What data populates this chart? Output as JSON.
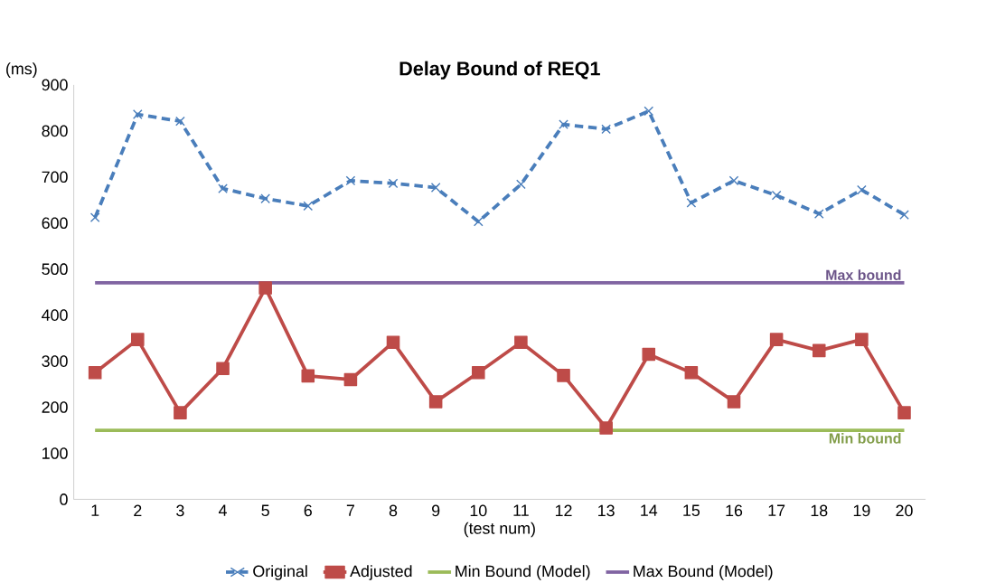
{
  "chart_data": {
    "type": "line",
    "title": "Delay Bound of REQ1",
    "xlabel": "(test num)",
    "ylabel": "(ms)",
    "categories": [
      "1",
      "2",
      "3",
      "4",
      "5",
      "6",
      "7",
      "8",
      "9",
      "10",
      "11",
      "12",
      "13",
      "14",
      "15",
      "16",
      "17",
      "18",
      "19",
      "20"
    ],
    "series": [
      {
        "name": "Original",
        "color": "#4a7ebb",
        "marker": "cross",
        "line_style": "dashed",
        "values": [
          612,
          836,
          821,
          675,
          653,
          637,
          692,
          686,
          677,
          603,
          684,
          814,
          804,
          843,
          644,
          692,
          660,
          620,
          672,
          618
        ]
      },
      {
        "name": "Adjusted",
        "color": "#be4b48",
        "marker": "square",
        "line_style": "solid",
        "values": [
          275,
          347,
          188,
          284,
          459,
          268,
          260,
          341,
          212,
          275,
          341,
          269,
          155,
          315,
          275,
          212,
          347,
          323,
          347,
          188
        ]
      },
      {
        "name": "Min Bound (Model)",
        "color": "#9bbb59",
        "marker": "none",
        "line_style": "solid",
        "values": [
          150,
          150,
          150,
          150,
          150,
          150,
          150,
          150,
          150,
          150,
          150,
          150,
          150,
          150,
          150,
          150,
          150,
          150,
          150,
          150
        ]
      },
      {
        "name": "Max Bound (Model)",
        "color": "#8064a2",
        "marker": "none",
        "line_style": "solid",
        "values": [
          470,
          470,
          470,
          470,
          470,
          470,
          470,
          470,
          470,
          470,
          470,
          470,
          470,
          470,
          470,
          470,
          470,
          470,
          470,
          470
        ]
      }
    ],
    "annotations": [
      {
        "text": "Max bound",
        "x": "20",
        "y": 470
      },
      {
        "text": "Min bound",
        "x": "20",
        "y": 150
      }
    ],
    "ylim": [
      0,
      900
    ],
    "yticks": [
      0,
      100,
      200,
      300,
      400,
      500,
      600,
      700,
      800,
      900
    ],
    "grid": false,
    "legend": "bottom"
  }
}
